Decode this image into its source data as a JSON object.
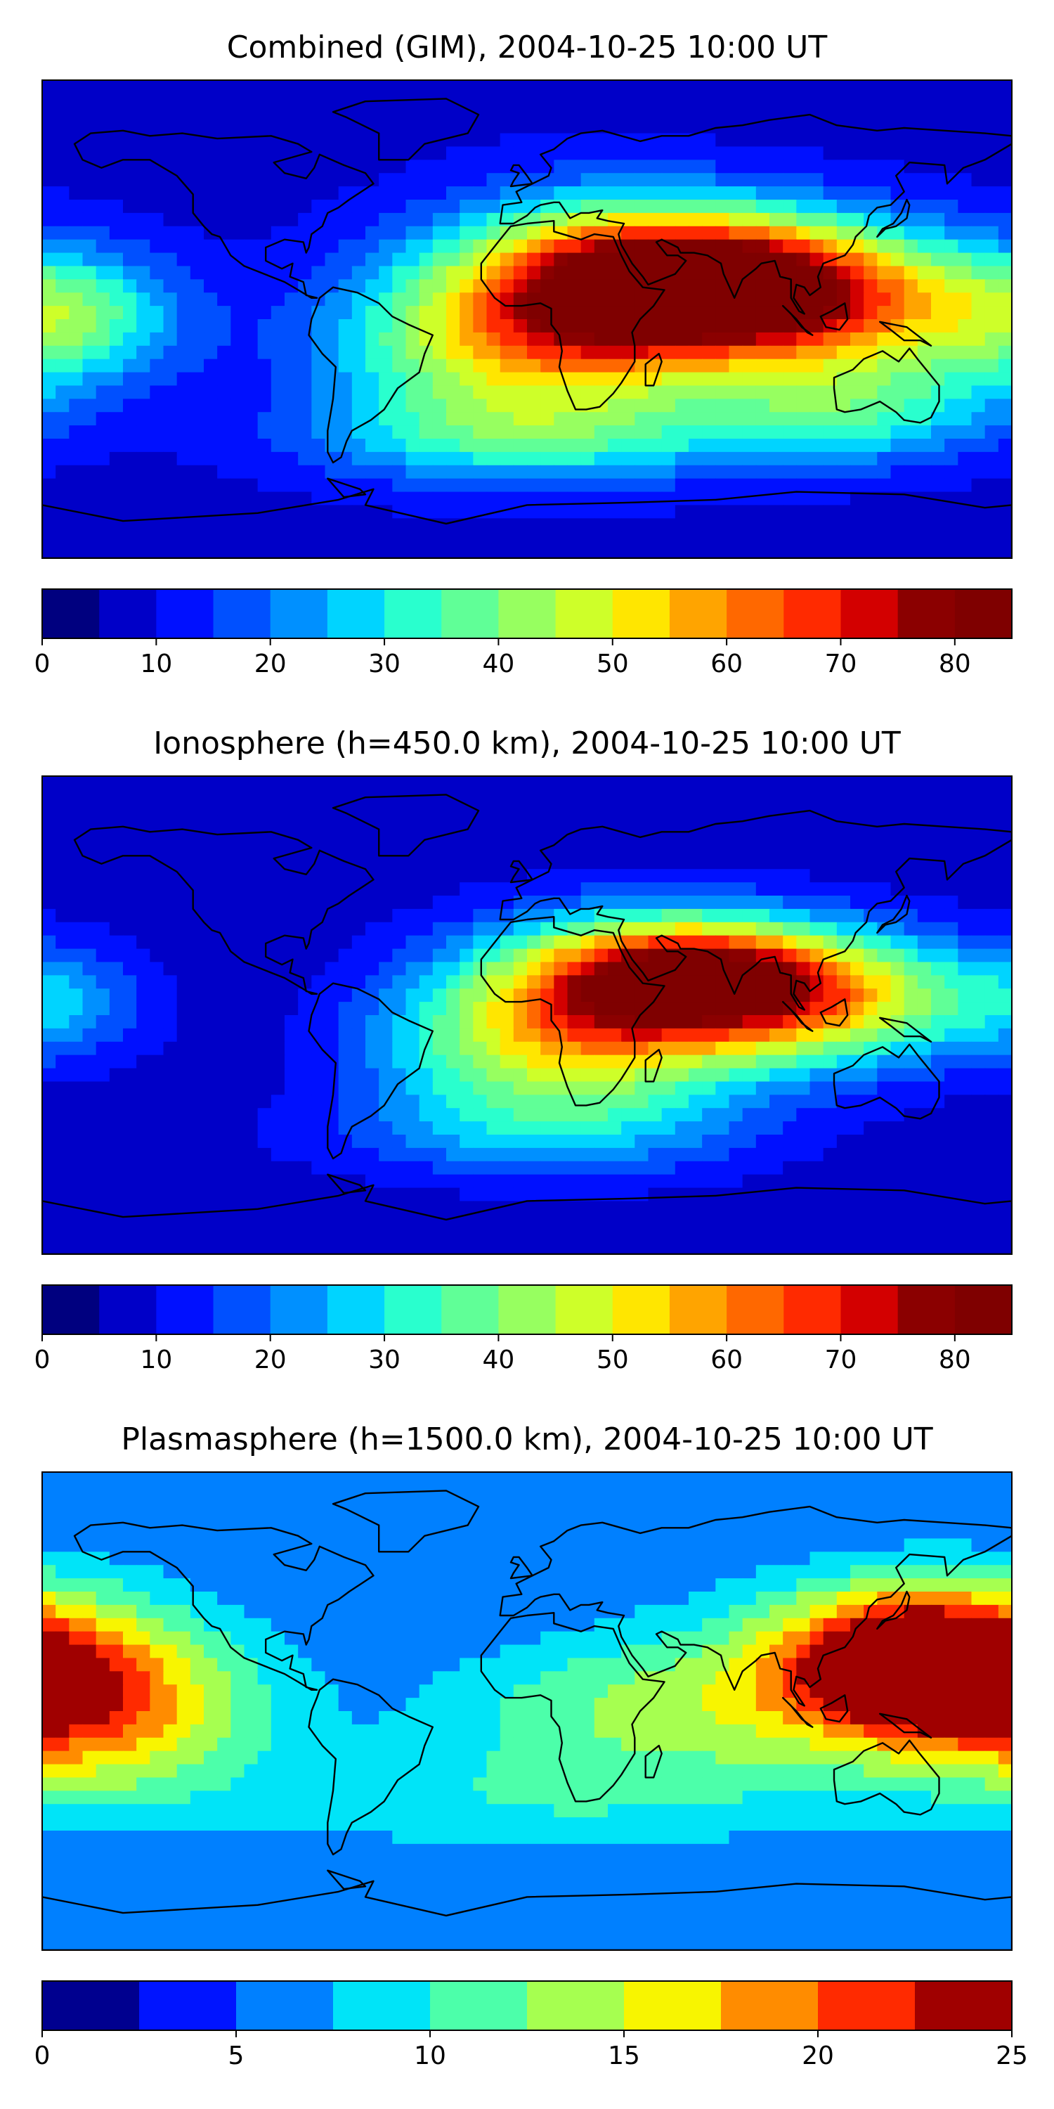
{
  "figure": {
    "panels": [
      {
        "title": "Combined (GIM), 2004-10-25 10:00 UT",
        "colorbar": {
          "min": 0,
          "max": 85,
          "step": 5,
          "ticks": [
            "0",
            "10",
            "20",
            "30",
            "40",
            "50",
            "60",
            "70",
            "80"
          ],
          "colors": [
            "#00007f",
            "#0000c8",
            "#0010ff",
            "#0050ff",
            "#0090ff",
            "#00d4ff",
            "#29ffce",
            "#60ff97",
            "#97ff60",
            "#ceff29",
            "#ffe600",
            "#ffa400",
            "#ff6800",
            "#ff2a00",
            "#d30000",
            "#8b0000",
            "#7f0000"
          ]
        }
      },
      {
        "title": "Ionosphere  (h=450.0 km), 2004-10-25 10:00 UT",
        "colorbar": {
          "min": 0,
          "max": 85,
          "step": 5,
          "ticks": [
            "0",
            "10",
            "20",
            "30",
            "40",
            "50",
            "60",
            "70",
            "80"
          ],
          "colors": [
            "#00007f",
            "#0000c8",
            "#0010ff",
            "#0050ff",
            "#0090ff",
            "#00d4ff",
            "#29ffce",
            "#60ff97",
            "#97ff60",
            "#ceff29",
            "#ffe600",
            "#ffa400",
            "#ff6800",
            "#ff2a00",
            "#d30000",
            "#8b0000",
            "#7f0000"
          ]
        }
      },
      {
        "title": "Plasmasphere (h=1500.0 km), 2004-10-25 10:00 UT",
        "colorbar": {
          "min": 0,
          "max": 25,
          "step": 2.5,
          "ticks": [
            "0",
            "5",
            "10",
            "15",
            "20",
            "25"
          ],
          "colors": [
            "#00008f",
            "#0014ff",
            "#0080ff",
            "#00e4f8",
            "#4cffaa",
            "#a6ff50",
            "#f8f500",
            "#ff8c00",
            "#ff2a00",
            "#a00000"
          ]
        }
      }
    ]
  },
  "chart_data": [
    {
      "type": "heatmap",
      "title": "Combined (GIM), 2004-10-25 10:00 UT",
      "levels": [
        0,
        5,
        10,
        15,
        20,
        25,
        30,
        35,
        40,
        45,
        50,
        55,
        60,
        65,
        70,
        75,
        80,
        85
      ],
      "blobs": [
        {
          "lon": 60,
          "lat": 15,
          "value": 73,
          "slon": 45,
          "slat": 18
        },
        {
          "lon": 20,
          "lat": 0,
          "value": 45,
          "slon": 40,
          "slat": 28
        },
        {
          "lon": 110,
          "lat": 5,
          "value": 50,
          "slon": 45,
          "slat": 20
        },
        {
          "lon": -30,
          "lat": -10,
          "value": 30,
          "slon": 40,
          "slat": 25
        },
        {
          "lon": -170,
          "lat": 0,
          "value": 35,
          "slon": 30,
          "slat": 18
        },
        {
          "lon": 0,
          "lat": -45,
          "value": 25,
          "slon": 60,
          "slat": 12
        },
        {
          "lon": 120,
          "lat": -35,
          "value": 30,
          "slon": 40,
          "slat": 14
        }
      ],
      "base": 8
    },
    {
      "type": "heatmap",
      "title": "Ionosphere  (h=450.0 km), 2004-10-25 10:00 UT",
      "levels": [
        0,
        5,
        10,
        15,
        20,
        25,
        30,
        35,
        40,
        45,
        50,
        55,
        60,
        65,
        70,
        75,
        80,
        85
      ],
      "blobs": [
        {
          "lon": 60,
          "lat": 15,
          "value": 63,
          "slon": 40,
          "slat": 15
        },
        {
          "lon": 30,
          "lat": -5,
          "value": 45,
          "slon": 40,
          "slat": 25
        },
        {
          "lon": 110,
          "lat": 5,
          "value": 45,
          "slon": 40,
          "slat": 18
        },
        {
          "lon": -20,
          "lat": -10,
          "value": 25,
          "slon": 35,
          "slat": 22
        },
        {
          "lon": -175,
          "lat": 5,
          "value": 22,
          "slon": 25,
          "slat": 15
        },
        {
          "lon": 0,
          "lat": -45,
          "value": 18,
          "slon": 60,
          "slat": 12
        }
      ],
      "base": 7
    },
    {
      "type": "heatmap",
      "title": "Plasmasphere (h=1500.0 km), 2004-10-25 10:00 UT",
      "levels": [
        0,
        2.5,
        5,
        7.5,
        10,
        12.5,
        15,
        17.5,
        20,
        22.5,
        25
      ],
      "blobs": [
        {
          "lon": 140,
          "lat": 20,
          "value": 21,
          "slon": 30,
          "slat": 18
        },
        {
          "lon": 120,
          "lat": 10,
          "value": 14,
          "slon": 50,
          "slat": 25
        },
        {
          "lon": -175,
          "lat": 10,
          "value": 16,
          "slon": 35,
          "slat": 25
        },
        {
          "lon": -140,
          "lat": 0,
          "value": 12,
          "slon": 40,
          "slat": 25
        },
        {
          "lon": 30,
          "lat": 0,
          "value": 11,
          "slon": 50,
          "slat": 20
        },
        {
          "lon": 0,
          "lat": -35,
          "value": 9,
          "slon": 80,
          "slat": 15
        }
      ],
      "base": 5
    }
  ]
}
